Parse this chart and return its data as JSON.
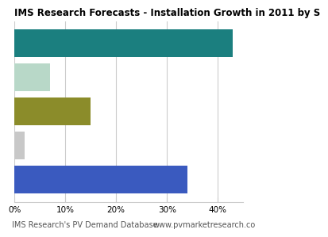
{
  "title": "IMS Research Forecasts - Installation Growth in 2011 by S",
  "values": [
    43,
    7,
    15,
    2,
    34
  ],
  "colors": [
    "#1b7f7f",
    "#b8d8c8",
    "#8b8c2a",
    "#c8c8c8",
    "#3a5abf"
  ],
  "xlim": [
    0,
    45
  ],
  "xticks": [
    0,
    10,
    20,
    30,
    40
  ],
  "xticklabels": [
    "0%",
    "10%",
    "20%",
    "30%",
    "40%"
  ],
  "footer_left": "IMS Research's PV Demand Database",
  "footer_right": "www.pvmarketresearch.co",
  "bg_color": "#ffffff",
  "grid_color": "#cccccc",
  "title_fontsize": 8.5,
  "tick_fontsize": 7.5,
  "footer_fontsize": 7,
  "bar_height": 0.82
}
